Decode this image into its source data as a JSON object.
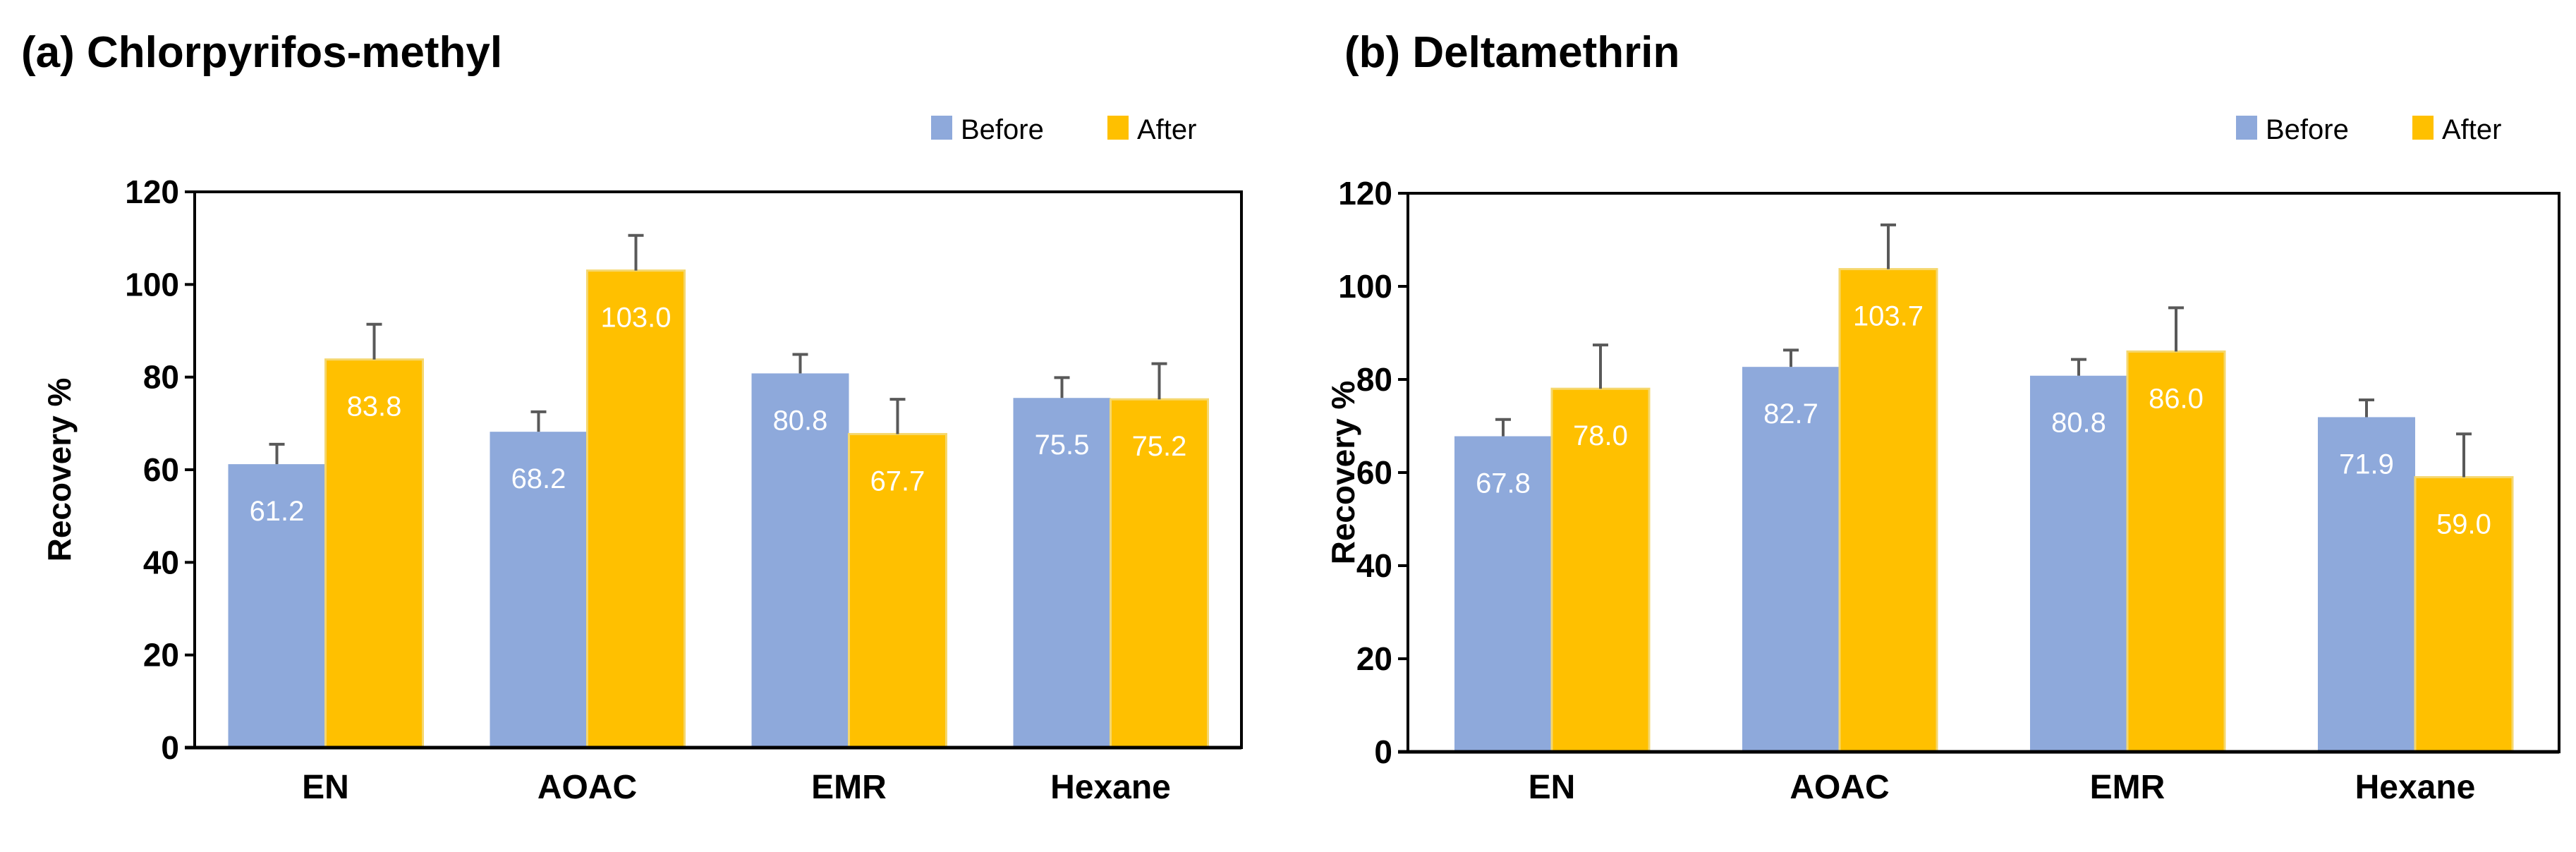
{
  "colors": {
    "before": "#8EA9DB",
    "after": "#FFC000",
    "after_edge": "#F5D76E",
    "error": "#595959",
    "axis": "#000000"
  },
  "chart_data": [
    {
      "type": "bar",
      "title": "(a) Chlorpyrifos-methyl",
      "xlabel": "",
      "ylabel": "Recovery %",
      "ylim": [
        0,
        120
      ],
      "yticks": [
        0,
        20,
        40,
        60,
        80,
        100,
        120
      ],
      "categories": [
        "EN",
        "AOAC",
        "EMR",
        "Hexane"
      ],
      "legend_position": "top-right",
      "series": [
        {
          "name": "Before",
          "values": [
            61.2,
            68.2,
            80.8,
            75.5
          ],
          "labels": [
            "61.2",
            "68.2",
            "80.8",
            "75.5"
          ],
          "errors": [
            4.3,
            4.3,
            4.1,
            4.4
          ]
        },
        {
          "name": "After",
          "values": [
            83.8,
            103.0,
            67.7,
            75.2
          ],
          "labels": [
            "83.8",
            "103.0",
            "67.7",
            "75.2"
          ],
          "errors": [
            7.6,
            7.6,
            7.5,
            7.7
          ]
        }
      ]
    },
    {
      "type": "bar",
      "title": "(b) Deltamethrin",
      "xlabel": "",
      "ylabel": "Recovery %",
      "ylim": [
        0,
        120
      ],
      "yticks": [
        0,
        20,
        40,
        60,
        80,
        100,
        120
      ],
      "categories": [
        "EN",
        "AOAC",
        "EMR",
        "Hexane"
      ],
      "legend_position": "top-right",
      "series": [
        {
          "name": "Before",
          "values": [
            67.8,
            82.7,
            80.8,
            71.9
          ],
          "labels": [
            "67.8",
            "82.7",
            "80.8",
            "71.9"
          ],
          "errors": [
            3.6,
            3.6,
            3.5,
            3.7
          ]
        },
        {
          "name": "After",
          "values": [
            78.0,
            103.7,
            86.0,
            59.0
          ],
          "labels": [
            "78.0",
            "103.7",
            "86.0",
            "59.0"
          ],
          "errors": [
            9.4,
            9.5,
            9.4,
            9.3
          ]
        }
      ]
    }
  ]
}
